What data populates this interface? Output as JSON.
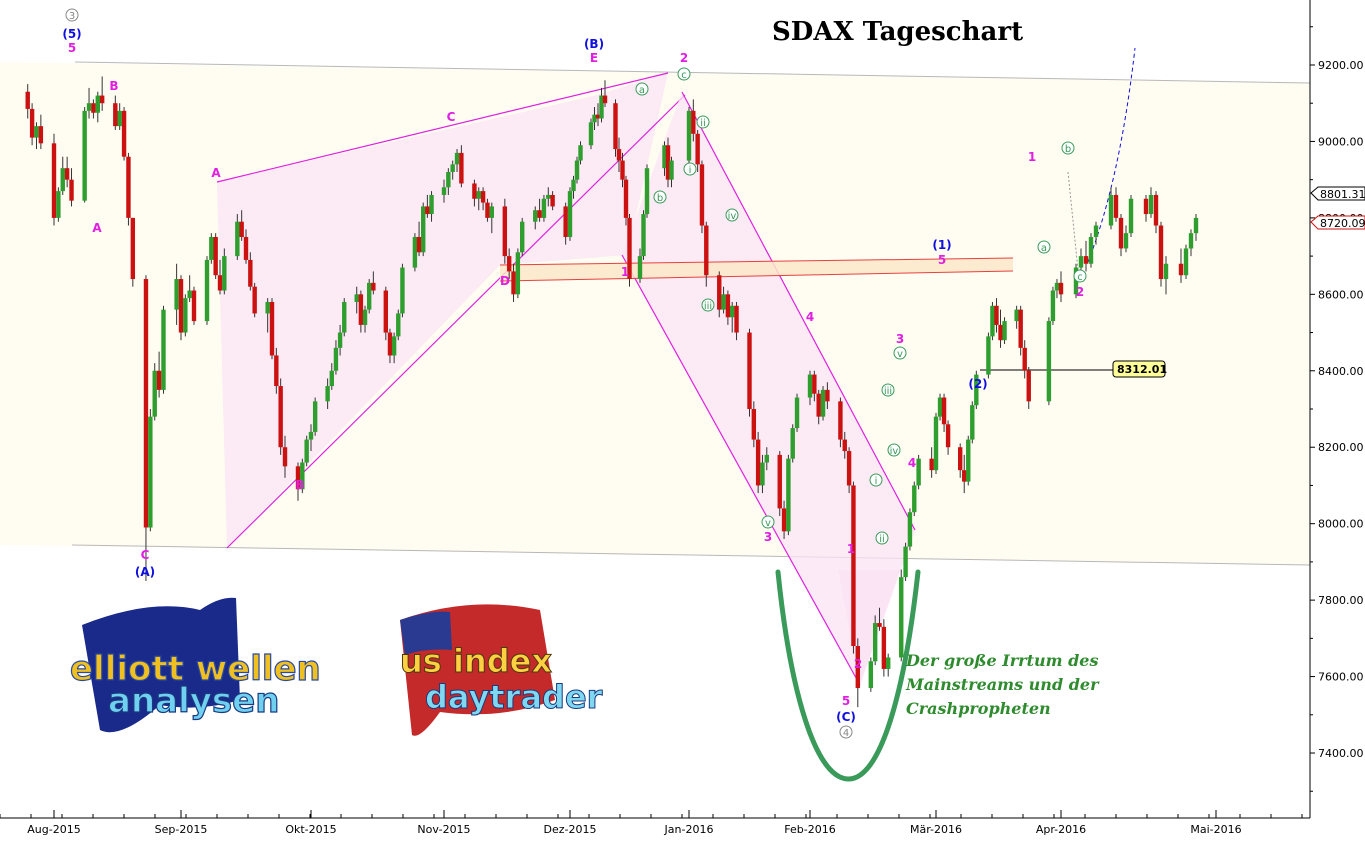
{
  "chart_data": {
    "type": "candlestick",
    "title": "SDAX Tageschart",
    "ylim": [
      7230,
      9370
    ],
    "y_ticks": [
      7400,
      7600,
      7800,
      8000,
      8200,
      8400,
      8600,
      8800,
      9000,
      9200
    ],
    "y_tick_labels": [
      "7400.00",
      "7600.00",
      "7800.00",
      "8000.00",
      "8200.00",
      "8400.00",
      "8600.00",
      "8800.00",
      "9000.00",
      "9200.00"
    ],
    "x_ticks": [
      {
        "label": "Aug-2015",
        "date": "2015-08-03"
      },
      {
        "label": "Sep-2015",
        "date": "2015-09-01"
      },
      {
        "label": "Okt-2015",
        "date": "2015-10-01"
      },
      {
        "label": "Nov-2015",
        "date": "2015-11-02"
      },
      {
        "label": "Dez-2015",
        "date": "2015-12-01"
      },
      {
        "label": "Jan-2016",
        "date": "2016-01-04"
      },
      {
        "label": "Feb-2016",
        "date": "2016-02-01"
      },
      {
        "label": "Mär-2016",
        "date": "2016-03-01"
      },
      {
        "label": "Apr-2016",
        "date": "2016-04-01"
      },
      {
        "label": "Mai-2016",
        "date": "2016-05-02"
      }
    ],
    "price_labels": {
      "last": "8801.31",
      "prev": "8720.09",
      "marker": "8312.01"
    },
    "colors": {
      "up": "#2e9e2e",
      "down": "#cc1111",
      "pattern": "#e020e0",
      "count_magenta": "#e020e0",
      "count_blue": "#1010dd",
      "count_green": "#2e8b57",
      "note": "#2e8b2e",
      "channel": "#b0b0b0",
      "zone": "#e84040"
    },
    "candles": [
      [
        "2015-07-28",
        9130,
        9150,
        9060,
        9085
      ],
      [
        "2015-07-29",
        9085,
        9100,
        8990,
        9010
      ],
      [
        "2015-07-30",
        9010,
        9050,
        8980,
        9040
      ],
      [
        "2015-07-31",
        9040,
        9070,
        8980,
        8995
      ],
      [
        "2015-08-03",
        8995,
        9020,
        8780,
        8800
      ],
      [
        "2015-08-04",
        8800,
        8880,
        8790,
        8870
      ],
      [
        "2015-08-05",
        8870,
        8960,
        8860,
        8930
      ],
      [
        "2015-08-06",
        8930,
        8960,
        8880,
        8900
      ],
      [
        "2015-08-07",
        8900,
        8930,
        8830,
        8845
      ],
      [
        "2015-08-10",
        8845,
        9090,
        8840,
        9080
      ],
      [
        "2015-08-11",
        9080,
        9140,
        9060,
        9100
      ],
      [
        "2015-08-12",
        9100,
        9110,
        9060,
        9075
      ],
      [
        "2015-08-13",
        9075,
        9130,
        9050,
        9120
      ],
      [
        "2015-08-14",
        9120,
        9170,
        9080,
        9100
      ],
      [
        "2015-08-17",
        9100,
        9120,
        9030,
        9040
      ],
      [
        "2015-08-18",
        9040,
        9100,
        9030,
        9080
      ],
      [
        "2015-08-19",
        9080,
        9090,
        8950,
        8960
      ],
      [
        "2015-08-20",
        8960,
        8970,
        8780,
        8800
      ],
      [
        "2015-08-21",
        8800,
        8800,
        8620,
        8640
      ],
      [
        "2015-08-24",
        8640,
        8650,
        7850,
        7990
      ],
      [
        "2015-08-25",
        7990,
        8300,
        7980,
        8280
      ],
      [
        "2015-08-26",
        8280,
        8420,
        8270,
        8400
      ],
      [
        "2015-08-27",
        8400,
        8450,
        8330,
        8350
      ],
      [
        "2015-08-28",
        8350,
        8570,
        8340,
        8560
      ],
      [
        "2015-08-31",
        8560,
        8680,
        8520,
        8640
      ],
      [
        "2015-09-01",
        8640,
        8650,
        8480,
        8500
      ],
      [
        "2015-09-02",
        8500,
        8600,
        8490,
        8590
      ],
      [
        "2015-09-03",
        8590,
        8650,
        8580,
        8610
      ],
      [
        "2015-09-04",
        8610,
        8620,
        8520,
        8530
      ],
      [
        "2015-09-07",
        8530,
        8700,
        8520,
        8690
      ],
      [
        "2015-09-08",
        8690,
        8760,
        8680,
        8750
      ],
      [
        "2015-09-09",
        8750,
        8760,
        8640,
        8650
      ],
      [
        "2015-09-10",
        8650,
        8690,
        8600,
        8610
      ],
      [
        "2015-09-11",
        8610,
        8720,
        8600,
        8700
      ],
      [
        "2015-09-14",
        8700,
        8810,
        8690,
        8790
      ],
      [
        "2015-09-15",
        8790,
        8820,
        8740,
        8750
      ],
      [
        "2015-09-16",
        8750,
        8770,
        8680,
        8690
      ],
      [
        "2015-09-17",
        8690,
        8710,
        8610,
        8620
      ],
      [
        "2015-09-18",
        8620,
        8630,
        8540,
        8550
      ],
      [
        "2015-09-21",
        8550,
        8590,
        8500,
        8580
      ],
      [
        "2015-09-22",
        8580,
        8590,
        8430,
        8440
      ],
      [
        "2015-09-23",
        8440,
        8460,
        8340,
        8360
      ],
      [
        "2015-09-24",
        8360,
        8380,
        8180,
        8200
      ],
      [
        "2015-09-25",
        8200,
        8230,
        8120,
        8150
      ],
      [
        "2015-09-28",
        8150,
        8160,
        8060,
        8090
      ],
      [
        "2015-09-29",
        8090,
        8170,
        8080,
        8160
      ],
      [
        "2015-09-30",
        8160,
        8230,
        8150,
        8220
      ],
      [
        "2015-10-01",
        8220,
        8260,
        8190,
        8240
      ],
      [
        "2015-10-02",
        8240,
        8330,
        8230,
        8320
      ],
      [
        "2015-10-05",
        8320,
        8380,
        8300,
        8360
      ],
      [
        "2015-10-06",
        8360,
        8420,
        8350,
        8400
      ],
      [
        "2015-10-07",
        8400,
        8480,
        8390,
        8460
      ],
      [
        "2015-10-08",
        8460,
        8520,
        8440,
        8500
      ],
      [
        "2015-10-09",
        8500,
        8590,
        8490,
        8580
      ],
      [
        "2015-10-12",
        8580,
        8620,
        8550,
        8600
      ],
      [
        "2015-10-13",
        8600,
        8610,
        8500,
        8520
      ],
      [
        "2015-10-14",
        8520,
        8570,
        8500,
        8560
      ],
      [
        "2015-10-15",
        8560,
        8640,
        8550,
        8630
      ],
      [
        "2015-10-16",
        8630,
        8660,
        8600,
        8610
      ],
      [
        "2015-10-19",
        8610,
        8620,
        8480,
        8500
      ],
      [
        "2015-10-20",
        8500,
        8510,
        8420,
        8440
      ],
      [
        "2015-10-21",
        8440,
        8500,
        8420,
        8490
      ],
      [
        "2015-10-22",
        8490,
        8560,
        8480,
        8550
      ],
      [
        "2015-10-23",
        8550,
        8680,
        8540,
        8670
      ],
      [
        "2015-10-26",
        8670,
        8760,
        8660,
        8750
      ],
      [
        "2015-10-27",
        8750,
        8790,
        8700,
        8710
      ],
      [
        "2015-10-28",
        8710,
        8840,
        8700,
        8830
      ],
      [
        "2015-10-29",
        8830,
        8860,
        8800,
        8810
      ],
      [
        "2015-10-30",
        8810,
        8870,
        8790,
        8860
      ],
      [
        "2015-11-02",
        8860,
        8900,
        8840,
        8880
      ],
      [
        "2015-11-03",
        8880,
        8930,
        8860,
        8920
      ],
      [
        "2015-11-04",
        8920,
        8950,
        8900,
        8940
      ],
      [
        "2015-11-05",
        8940,
        8980,
        8920,
        8970
      ],
      [
        "2015-11-06",
        8970,
        8990,
        8880,
        8890
      ],
      [
        "2015-11-09",
        8890,
        8900,
        8830,
        8850
      ],
      [
        "2015-11-10",
        8850,
        8880,
        8820,
        8870
      ],
      [
        "2015-11-11",
        8870,
        8880,
        8820,
        8840
      ],
      [
        "2015-11-12",
        8840,
        8850,
        8790,
        8800
      ],
      [
        "2015-11-13",
        8800,
        8840,
        8760,
        8830
      ],
      [
        "2015-11-16",
        8830,
        8850,
        8680,
        8700
      ],
      [
        "2015-11-17",
        8700,
        8720,
        8640,
        8660
      ],
      [
        "2015-11-18",
        8660,
        8680,
        8580,
        8600
      ],
      [
        "2015-11-19",
        8600,
        8720,
        8590,
        8710
      ],
      [
        "2015-11-20",
        8710,
        8800,
        8700,
        8790
      ],
      [
        "2015-11-23",
        8790,
        8830,
        8770,
        8820
      ],
      [
        "2015-11-24",
        8820,
        8850,
        8790,
        8800
      ],
      [
        "2015-11-25",
        8800,
        8860,
        8790,
        8850
      ],
      [
        "2015-11-26",
        8850,
        8880,
        8830,
        8860
      ],
      [
        "2015-11-27",
        8860,
        8870,
        8820,
        8830
      ],
      [
        "2015-11-30",
        8830,
        8840,
        8730,
        8750
      ],
      [
        "2015-12-01",
        8750,
        8880,
        8740,
        8870
      ],
      [
        "2015-12-02",
        8870,
        8910,
        8850,
        8900
      ],
      [
        "2015-12-03",
        8900,
        8960,
        8890,
        8950
      ],
      [
        "2015-12-04",
        8950,
        9000,
        8940,
        8990
      ],
      [
        "2015-12-07",
        8990,
        9060,
        8980,
        9050
      ],
      [
        "2015-12-08",
        9050,
        9090,
        9030,
        9070
      ],
      [
        "2015-12-09",
        9070,
        9100,
        9040,
        9060
      ],
      [
        "2015-12-10",
        9060,
        9140,
        9050,
        9120
      ],
      [
        "2015-12-11",
        9120,
        9160,
        9090,
        9100
      ],
      [
        "2015-12-14",
        9100,
        9110,
        8960,
        8980
      ],
      [
        "2015-12-15",
        8980,
        9010,
        8920,
        8950
      ],
      [
        "2015-12-16",
        8950,
        8970,
        8880,
        8900
      ],
      [
        "2015-12-17",
        8900,
        8910,
        8780,
        8800
      ],
      [
        "2015-12-18",
        8800,
        8810,
        8620,
        8640
      ],
      [
        "2015-12-21",
        8640,
        8720,
        8630,
        8700
      ],
      [
        "2015-12-22",
        8700,
        8820,
        8690,
        8810
      ],
      [
        "2015-12-23",
        8810,
        8940,
        8800,
        8930
      ],
      [
        "2015-12-28",
        8930,
        9000,
        8910,
        8990
      ],
      [
        "2015-12-29",
        8990,
        9010,
        8880,
        8900
      ],
      [
        "2015-12-30",
        8900,
        8960,
        8880,
        8950
      ],
      [
        "2016-01-04",
        8950,
        9090,
        8940,
        9080
      ],
      [
        "2016-01-05",
        9080,
        9110,
        9000,
        9020
      ],
      [
        "2016-01-06",
        9020,
        9030,
        8920,
        8940
      ],
      [
        "2016-01-07",
        8940,
        8950,
        8760,
        8780
      ],
      [
        "2016-01-08",
        8780,
        8790,
        8620,
        8650
      ],
      [
        "2016-01-11",
        8650,
        8660,
        8540,
        8560
      ],
      [
        "2016-01-12",
        8560,
        8620,
        8550,
        8600
      ],
      [
        "2016-01-13",
        8600,
        8610,
        8520,
        8540
      ],
      [
        "2016-01-14",
        8540,
        8580,
        8500,
        8570
      ],
      [
        "2016-01-15",
        8570,
        8580,
        8480,
        8500
      ],
      [
        "2016-01-18",
        8500,
        8510,
        8280,
        8300
      ],
      [
        "2016-01-19",
        8300,
        8320,
        8200,
        8220
      ],
      [
        "2016-01-20",
        8220,
        8240,
        8080,
        8100
      ],
      [
        "2016-01-21",
        8100,
        8180,
        8080,
        8160
      ],
      [
        "2016-01-22",
        8160,
        8200,
        8140,
        8180
      ],
      [
        "2016-01-25",
        8180,
        8190,
        8020,
        8040
      ],
      [
        "2016-01-26",
        8040,
        8060,
        7960,
        7980
      ],
      [
        "2016-01-27",
        7980,
        8180,
        7970,
        8170
      ],
      [
        "2016-01-28",
        8170,
        8260,
        8160,
        8250
      ],
      [
        "2016-01-29",
        8250,
        8340,
        8240,
        8330
      ],
      [
        "2016-02-01",
        8330,
        8400,
        8310,
        8390
      ],
      [
        "2016-02-02",
        8390,
        8400,
        8320,
        8340
      ],
      [
        "2016-02-03",
        8340,
        8350,
        8260,
        8280
      ],
      [
        "2016-02-04",
        8280,
        8360,
        8270,
        8350
      ],
      [
        "2016-02-05",
        8350,
        8370,
        8300,
        8320
      ],
      [
        "2016-02-08",
        8320,
        8330,
        8200,
        8220
      ],
      [
        "2016-02-09",
        8220,
        8240,
        8170,
        8190
      ],
      [
        "2016-02-10",
        8190,
        8200,
        8080,
        8100
      ],
      [
        "2016-02-11",
        8100,
        8110,
        7660,
        7680
      ],
      [
        "2016-02-12",
        7680,
        7700,
        7520,
        7570
      ],
      [
        "2016-02-15",
        7570,
        7650,
        7560,
        7640
      ],
      [
        "2016-02-16",
        7640,
        7760,
        7630,
        7740
      ],
      [
        "2016-02-17",
        7740,
        7780,
        7720,
        7730
      ],
      [
        "2016-02-18",
        7730,
        7750,
        7600,
        7620
      ],
      [
        "2016-02-19",
        7620,
        7660,
        7600,
        7650
      ],
      [
        "2016-02-22",
        7650,
        7880,
        7640,
        7860
      ],
      [
        "2016-02-23",
        7860,
        7950,
        7850,
        7940
      ],
      [
        "2016-02-24",
        7940,
        8040,
        7930,
        8030
      ],
      [
        "2016-02-25",
        8030,
        8110,
        8020,
        8100
      ],
      [
        "2016-02-26",
        8100,
        8180,
        8090,
        8170
      ],
      [
        "2016-02-29",
        8170,
        8200,
        8120,
        8140
      ],
      [
        "2016-03-01",
        8140,
        8290,
        8130,
        8280
      ],
      [
        "2016-03-02",
        8280,
        8340,
        8270,
        8330
      ],
      [
        "2016-03-03",
        8330,
        8340,
        8240,
        8260
      ],
      [
        "2016-03-04",
        8260,
        8270,
        8180,
        8200
      ],
      [
        "2016-03-07",
        8200,
        8210,
        8120,
        8140
      ],
      [
        "2016-03-08",
        8140,
        8180,
        8080,
        8110
      ],
      [
        "2016-03-09",
        8110,
        8230,
        8100,
        8220
      ],
      [
        "2016-03-10",
        8220,
        8320,
        8210,
        8310
      ],
      [
        "2016-03-11",
        8310,
        8400,
        8300,
        8390
      ],
      [
        "2016-03-14",
        8390,
        8500,
        8380,
        8490
      ],
      [
        "2016-03-15",
        8490,
        8580,
        8480,
        8570
      ],
      [
        "2016-03-16",
        8570,
        8590,
        8500,
        8520
      ],
      [
        "2016-03-17",
        8520,
        8560,
        8460,
        8480
      ],
      [
        "2016-03-18",
        8480,
        8540,
        8470,
        8530
      ],
      [
        "2016-03-21",
        8530,
        8570,
        8510,
        8560
      ],
      [
        "2016-03-22",
        8560,
        8570,
        8440,
        8460
      ],
      [
        "2016-03-23",
        8460,
        8480,
        8380,
        8400
      ],
      [
        "2016-03-24",
        8400,
        8410,
        8300,
        8320
      ],
      [
        "2016-03-29",
        8320,
        8540,
        8310,
        8530
      ],
      [
        "2016-03-30",
        8530,
        8620,
        8520,
        8610
      ],
      [
        "2016-03-31",
        8610,
        8640,
        8590,
        8630
      ],
      [
        "2016-04-01",
        8630,
        8660,
        8580,
        8600
      ],
      [
        "2016-04-04",
        8600,
        8680,
        8590,
        8670
      ],
      [
        "2016-04-05",
        8670,
        8720,
        8650,
        8700
      ],
      [
        "2016-04-06",
        8700,
        8740,
        8660,
        8680
      ],
      [
        "2016-04-07",
        8680,
        8760,
        8670,
        8750
      ],
      [
        "2016-04-08",
        8750,
        8790,
        8730,
        8780
      ],
      [
        "2016-04-11",
        8780,
        8880,
        8770,
        8860
      ],
      [
        "2016-04-12",
        8860,
        8880,
        8790,
        8800
      ],
      [
        "2016-04-13",
        8800,
        8810,
        8700,
        8720
      ],
      [
        "2016-04-14",
        8720,
        8780,
        8710,
        8760
      ],
      [
        "2016-04-15",
        8760,
        8860,
        8750,
        8850
      ],
      [
        "2016-04-18",
        8850,
        8860,
        8790,
        8810
      ],
      [
        "2016-04-19",
        8810,
        8880,
        8800,
        8860
      ],
      [
        "2016-04-20",
        8860,
        8870,
        8760,
        8780
      ],
      [
        "2016-04-21",
        8780,
        8790,
        8620,
        8640
      ],
      [
        "2016-04-22",
        8640,
        8700,
        8600,
        8680
      ],
      [
        "2016-04-25",
        8680,
        8720,
        8630,
        8650
      ],
      [
        "2016-04-26",
        8650,
        8730,
        8640,
        8720
      ],
      [
        "2016-04-27",
        8720,
        8770,
        8700,
        8760
      ],
      [
        "2016-04-28",
        8760,
        8810,
        8740,
        8800
      ]
    ]
  },
  "notes": {
    "line1": "Der große Irrtum des",
    "line2": "Mainstreams und der",
    "line3": "Crashpropheten"
  },
  "logos": {
    "elliott_line1": "elliott wellen",
    "elliott_line2": "analysen",
    "us_line1": "us index",
    "us_line2": "daytrader"
  }
}
